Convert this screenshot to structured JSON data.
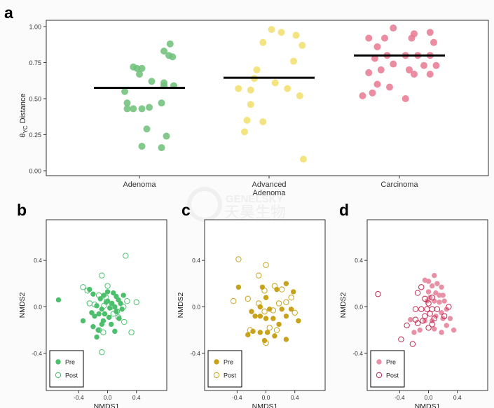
{
  "watermark": {
    "line1": "GENELSKY",
    "line2": "天昊生物"
  },
  "chart_data": [
    {
      "panel": "a",
      "type": "scatter",
      "title": "",
      "xlabel": "",
      "ylabel_main": "θ",
      "ylabel_sub": "YC",
      "ylabel_rest": " Distance",
      "ylim": [
        0,
        1.0
      ],
      "yticks": [
        "0.00",
        "0.25",
        "0.50",
        "0.75",
        "1.00"
      ],
      "ytick_values": [
        0,
        0.25,
        0.5,
        0.75,
        1.0
      ],
      "grid": false,
      "categories": [
        [
          "Adenoma"
        ],
        [
          "Advanced",
          "Adenoma"
        ],
        [
          "Carcinoma"
        ]
      ],
      "colors": [
        "#6dbf78",
        "#f2df6b",
        "#e8788f"
      ],
      "medians": [
        0.575,
        0.645,
        0.8
      ],
      "series": [
        {
          "category": 0,
          "points": [
            [
              -0.05,
              0.72
            ],
            [
              -0.02,
              0.71
            ],
            [
              0.02,
              0.71
            ],
            [
              0.0,
              0.67
            ],
            [
              -0.12,
              0.55
            ],
            [
              -0.1,
              0.47
            ],
            [
              -0.1,
              0.43
            ],
            [
              0.02,
              0.43
            ],
            [
              0.2,
              0.59
            ],
            [
              0.25,
              0.88
            ],
            [
              0.2,
              0.83
            ],
            [
              0.24,
              0.8
            ],
            [
              0.27,
              0.79
            ],
            [
              0.28,
              0.59
            ],
            [
              0.2,
              0.61
            ],
            [
              0.1,
              0.62
            ],
            [
              0.08,
              0.44
            ],
            [
              0.18,
              0.47
            ],
            [
              -0.05,
              0.43
            ],
            [
              0.06,
              0.29
            ],
            [
              0.22,
              0.24
            ],
            [
              0.02,
              0.17
            ],
            [
              0.18,
              0.16
            ]
          ]
        },
        {
          "category": 1,
          "points": [
            [
              -0.05,
              0.89
            ],
            [
              0.02,
              0.98
            ],
            [
              0.1,
              0.96
            ],
            [
              0.22,
              0.94
            ],
            [
              0.27,
              0.87
            ],
            [
              0.2,
              0.76
            ],
            [
              -0.1,
              0.7
            ],
            [
              -0.12,
              0.64
            ],
            [
              0.05,
              0.61
            ],
            [
              0.15,
              0.57
            ],
            [
              -0.25,
              0.57
            ],
            [
              -0.15,
              0.56
            ],
            [
              0.25,
              0.52
            ],
            [
              -0.15,
              0.46
            ],
            [
              -0.18,
              0.35
            ],
            [
              -0.05,
              0.34
            ],
            [
              -0.2,
              0.27
            ],
            [
              0.28,
              0.08
            ]
          ]
        },
        {
          "category": 2,
          "points": [
            [
              -0.25,
              0.92
            ],
            [
              -0.05,
              0.99
            ],
            [
              -0.12,
              0.92
            ],
            [
              0.1,
              0.92
            ],
            [
              0.25,
              0.96
            ],
            [
              0.28,
              0.89
            ],
            [
              0.12,
              0.95
            ],
            [
              -0.18,
              0.86
            ],
            [
              -0.1,
              0.8
            ],
            [
              -0.2,
              0.78
            ],
            [
              0.05,
              0.8
            ],
            [
              0.15,
              0.8
            ],
            [
              0.25,
              0.8
            ],
            [
              0.2,
              0.73
            ],
            [
              0.3,
              0.73
            ],
            [
              -0.15,
              0.7
            ],
            [
              0.08,
              0.7
            ],
            [
              -0.05,
              0.74
            ],
            [
              0.12,
              0.67
            ],
            [
              0.25,
              0.67
            ],
            [
              -0.25,
              0.68
            ],
            [
              -0.18,
              0.6
            ],
            [
              -0.08,
              0.58
            ],
            [
              -0.22,
              0.54
            ],
            [
              -0.3,
              0.52
            ],
            [
              0.05,
              0.5
            ]
          ]
        }
      ]
    },
    {
      "panel": "b",
      "type": "scatter",
      "xlabel": "NMDS1",
      "ylabel": "NMDS2",
      "xticks": [
        "-0.4",
        "0.0",
        "0.4"
      ],
      "xtick_values": [
        -0.4,
        0.0,
        0.4
      ],
      "yticks": [
        "-0.4",
        "0.0",
        "0.4"
      ],
      "ytick_values": [
        -0.4,
        0.0,
        0.4
      ],
      "xlim": [
        -0.85,
        0.82
      ],
      "ylim": [
        -0.72,
        0.75
      ],
      "color": "#4cbf6d",
      "legend": [
        "Pre",
        "Post"
      ],
      "legend_position": "bottom-left",
      "series": [
        {
          "name": "Pre",
          "filled": true,
          "points": [
            [
              -0.68,
              0.06
            ],
            [
              -0.25,
              0.15
            ],
            [
              -0.2,
              0.11
            ],
            [
              -0.15,
              0.01
            ],
            [
              -0.1,
              0.07
            ],
            [
              -0.08,
              -0.02
            ],
            [
              -0.12,
              -0.06
            ],
            [
              -0.05,
              0.1
            ],
            [
              -0.02,
              0.04
            ],
            [
              0.0,
              0.05
            ],
            [
              0.03,
              -0.01
            ],
            [
              0.06,
              0.03
            ],
            [
              0.1,
              0.0
            ],
            [
              0.12,
              -0.04
            ],
            [
              0.15,
              0.06
            ],
            [
              0.18,
              0.03
            ],
            [
              0.2,
              -0.02
            ],
            [
              -0.04,
              -0.06
            ],
            [
              0.02,
              -0.09
            ],
            [
              -0.06,
              -0.12
            ],
            [
              -0.18,
              -0.08
            ],
            [
              -0.2,
              -0.17
            ],
            [
              -0.13,
              -0.2
            ],
            [
              -0.08,
              -0.15
            ],
            [
              0.05,
              -0.15
            ],
            [
              0.1,
              -0.21
            ],
            [
              0.22,
              0.1
            ],
            [
              0.12,
              0.09
            ],
            [
              0.0,
              0.13
            ],
            [
              0.08,
              0.12
            ],
            [
              -0.34,
              -0.12
            ],
            [
              -0.15,
              -0.26
            ],
            [
              -0.22,
              -0.05
            ],
            [
              0.16,
              -0.1
            ]
          ]
        },
        {
          "name": "Post",
          "filled": false,
          "points": [
            [
              0.25,
              0.44
            ],
            [
              -0.08,
              0.27
            ],
            [
              0.0,
              0.18
            ],
            [
              -0.34,
              0.17
            ],
            [
              -0.28,
              0.14
            ],
            [
              -0.12,
              0.1
            ],
            [
              -0.25,
              0.03
            ],
            [
              -0.18,
              0.02
            ],
            [
              -0.05,
              0.01
            ],
            [
              0.05,
              0.0
            ],
            [
              0.22,
              0.0
            ],
            [
              0.4,
              0.04
            ],
            [
              0.27,
              0.05
            ],
            [
              0.15,
              -0.09
            ],
            [
              0.23,
              -0.13
            ],
            [
              0.33,
              -0.22
            ],
            [
              -0.12,
              -0.2
            ],
            [
              -0.06,
              -0.22
            ],
            [
              -0.08,
              -0.39
            ],
            [
              0.13,
              -0.04
            ],
            [
              0.08,
              -0.06
            ],
            [
              -0.02,
              0.08
            ]
          ]
        }
      ]
    },
    {
      "panel": "c",
      "type": "scatter",
      "xlabel": "NMDS1",
      "ylabel": "NMDS2",
      "xticks": [
        "-0.4",
        "0.0",
        "0.4"
      ],
      "xtick_values": [
        -0.4,
        0.0,
        0.4
      ],
      "yticks": [
        "-0.4",
        "0.0",
        "0.4"
      ],
      "ytick_values": [
        -0.4,
        0.0,
        0.4
      ],
      "xlim": [
        -0.85,
        0.82
      ],
      "ylim": [
        -0.72,
        0.75
      ],
      "color": "#c9a21c",
      "legend": [
        "Pre",
        "Post"
      ],
      "legend_position": "bottom-left",
      "series": [
        {
          "name": "Pre",
          "filled": true,
          "points": [
            [
              -0.38,
              0.17
            ],
            [
              -0.05,
              0.17
            ],
            [
              0.28,
              0.2
            ],
            [
              0.15,
              0.15
            ],
            [
              0.38,
              0.13
            ],
            [
              -0.08,
              0.0
            ],
            [
              0.05,
              -0.02
            ],
            [
              0.22,
              -0.02
            ],
            [
              0.35,
              -0.02
            ],
            [
              -0.2,
              -0.04
            ],
            [
              -0.15,
              -0.08
            ],
            [
              -0.08,
              -0.08
            ],
            [
              0.0,
              -0.1
            ],
            [
              0.1,
              -0.1
            ],
            [
              0.28,
              -0.08
            ],
            [
              0.18,
              -0.15
            ],
            [
              0.45,
              -0.12
            ],
            [
              -0.25,
              -0.24
            ],
            [
              -0.18,
              -0.21
            ],
            [
              -0.08,
              -0.22
            ],
            [
              0.02,
              -0.22
            ],
            [
              0.12,
              -0.25
            ],
            [
              0.28,
              -0.28
            ],
            [
              -0.02,
              -0.29
            ],
            [
              0.0,
              0.08
            ]
          ]
        },
        {
          "name": "Post",
          "filled": false,
          "points": [
            [
              -0.38,
              0.41
            ],
            [
              0.0,
              0.36
            ],
            [
              -0.1,
              0.27
            ],
            [
              -0.02,
              0.14
            ],
            [
              0.12,
              0.18
            ],
            [
              0.22,
              0.15
            ],
            [
              0.35,
              0.08
            ],
            [
              0.18,
              0.03
            ],
            [
              0.1,
              -0.03
            ],
            [
              -0.02,
              -0.04
            ],
            [
              -0.1,
              0.03
            ],
            [
              -0.25,
              0.07
            ],
            [
              -0.45,
              0.05
            ],
            [
              0.28,
              0.04
            ],
            [
              -0.22,
              -0.2
            ],
            [
              0.05,
              -0.18
            ],
            [
              0.15,
              -0.2
            ],
            [
              0.0,
              -0.31
            ],
            [
              0.4,
              -0.05
            ]
          ]
        }
      ]
    },
    {
      "panel": "d",
      "type": "scatter",
      "xlabel": "NMDS1",
      "ylabel": "NMDS2",
      "xticks": [
        "-0.4",
        "0.0",
        "0.4"
      ],
      "xtick_values": [
        -0.4,
        0.0,
        0.4
      ],
      "yticks": [
        "-0.4",
        "0.0",
        "0.4"
      ],
      "ytick_values": [
        -0.4,
        0.0,
        0.4
      ],
      "xlim": [
        -0.85,
        0.82
      ],
      "ylim": [
        -0.72,
        0.75
      ],
      "color": "#e891a6",
      "stroke_post": "#c2264e",
      "legend": [
        "Pre",
        "Post"
      ],
      "legend_position": "bottom-left",
      "series": [
        {
          "name": "Pre",
          "filled": true,
          "points": [
            [
              -0.05,
              0.23
            ],
            [
              0.0,
              0.22
            ],
            [
              0.08,
              0.27
            ],
            [
              0.12,
              0.2
            ],
            [
              0.05,
              0.18
            ],
            [
              0.18,
              0.17
            ],
            [
              0.0,
              0.13
            ],
            [
              0.1,
              0.12
            ],
            [
              0.15,
              0.1
            ],
            [
              0.2,
              0.1
            ],
            [
              -0.02,
              0.05
            ],
            [
              0.08,
              0.05
            ],
            [
              0.15,
              0.04
            ],
            [
              0.22,
              0.05
            ],
            [
              0.25,
              -0.02
            ],
            [
              0.18,
              -0.05
            ],
            [
              0.1,
              -0.08
            ],
            [
              0.05,
              -0.12
            ],
            [
              0.2,
              -0.1
            ],
            [
              0.3,
              -0.1
            ],
            [
              0.25,
              -0.16
            ],
            [
              0.08,
              -0.19
            ],
            [
              0.18,
              -0.22
            ],
            [
              0.35,
              -0.2
            ],
            [
              -0.05,
              -0.12
            ],
            [
              -0.12,
              -0.2
            ],
            [
              -0.2,
              -0.22
            ],
            [
              -0.25,
              -0.11
            ],
            [
              0.02,
              0.08
            ]
          ]
        },
        {
          "name": "Post",
          "filled": false,
          "points": [
            [
              -0.7,
              0.11
            ],
            [
              -0.15,
              0.12
            ],
            [
              -0.1,
              0.17
            ],
            [
              -0.05,
              0.07
            ],
            [
              0.05,
              0.08
            ],
            [
              0.0,
              0.03
            ],
            [
              -0.1,
              -0.02
            ],
            [
              -0.02,
              -0.02
            ],
            [
              0.05,
              -0.02
            ],
            [
              0.12,
              -0.02
            ],
            [
              0.28,
              0.0
            ],
            [
              -0.18,
              -0.02
            ],
            [
              0.02,
              -0.06
            ],
            [
              -0.05,
              -0.08
            ],
            [
              0.08,
              -0.1
            ],
            [
              0.22,
              -0.08
            ],
            [
              -0.18,
              -0.11
            ],
            [
              -0.08,
              -0.12
            ],
            [
              0.05,
              -0.15
            ],
            [
              -0.3,
              -0.16
            ],
            [
              -0.38,
              -0.28
            ],
            [
              -0.22,
              -0.32
            ],
            [
              -0.15,
              -0.14
            ],
            [
              0.0,
              -0.18
            ]
          ]
        }
      ]
    }
  ],
  "panel_letters": [
    "a",
    "b",
    "c",
    "d"
  ]
}
